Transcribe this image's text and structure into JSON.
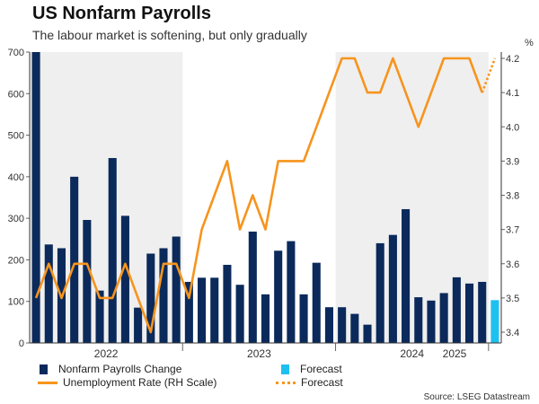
{
  "title": "US Nonfarm Payrolls",
  "subtitle": "The labour market is softening, but only gradually",
  "right_axis_unit": "%",
  "source": "Source: LSEG Datastream",
  "colors": {
    "bar": "#0b2a5b",
    "bar_forecast": "#1ec0f0",
    "line": "#f7941d",
    "shade": "#efefef",
    "axis": "#333333"
  },
  "legend": {
    "payrolls": "Nonfarm Payrolls Change",
    "bar_forecast": "Forecast",
    "unemployment": "Unemployment Rate (RH Scale)",
    "line_forecast": "Forecast"
  },
  "chart_data": {
    "type": "bar+line",
    "title": "US Nonfarm Payrolls",
    "left_axis": {
      "label": "Nonfarm Payrolls Change",
      "range": [
        0,
        700
      ],
      "ticks": [
        0,
        100,
        200,
        300,
        400,
        500,
        600,
        700
      ]
    },
    "right_axis": {
      "label": "%",
      "range": [
        3.4,
        4.2
      ],
      "ticks": [
        3.4,
        3.5,
        3.6,
        3.7,
        3.8,
        3.9,
        4.0,
        4.1,
        4.2
      ]
    },
    "x_year_labels": [
      "2022",
      "2023",
      "2024",
      "2025"
    ],
    "shaded_periods": [
      "2022",
      "2024"
    ],
    "payrolls": [
      700,
      237,
      228,
      400,
      296,
      126,
      445,
      306,
      85,
      215,
      228,
      256,
      147,
      157,
      157,
      188,
      140,
      268,
      117,
      222,
      245,
      117,
      193,
      86,
      86,
      70,
      44,
      240,
      260,
      322,
      110,
      102,
      120,
      158,
      143,
      147
    ],
    "payrolls_forecast": 103,
    "unemployment_rate": [
      3.5,
      3.6,
      3.5,
      3.6,
      3.6,
      3.5,
      3.5,
      3.6,
      3.5,
      3.4,
      3.6,
      3.6,
      3.5,
      3.7,
      3.8,
      3.9,
      3.7,
      3.8,
      3.7,
      3.9,
      3.9,
      3.9,
      4.0,
      4.1,
      4.2,
      4.2,
      4.1,
      4.1,
      4.2,
      4.1,
      4.0,
      4.1,
      4.2,
      4.2,
      4.2,
      4.1
    ],
    "unemployment_forecast": 4.2
  }
}
